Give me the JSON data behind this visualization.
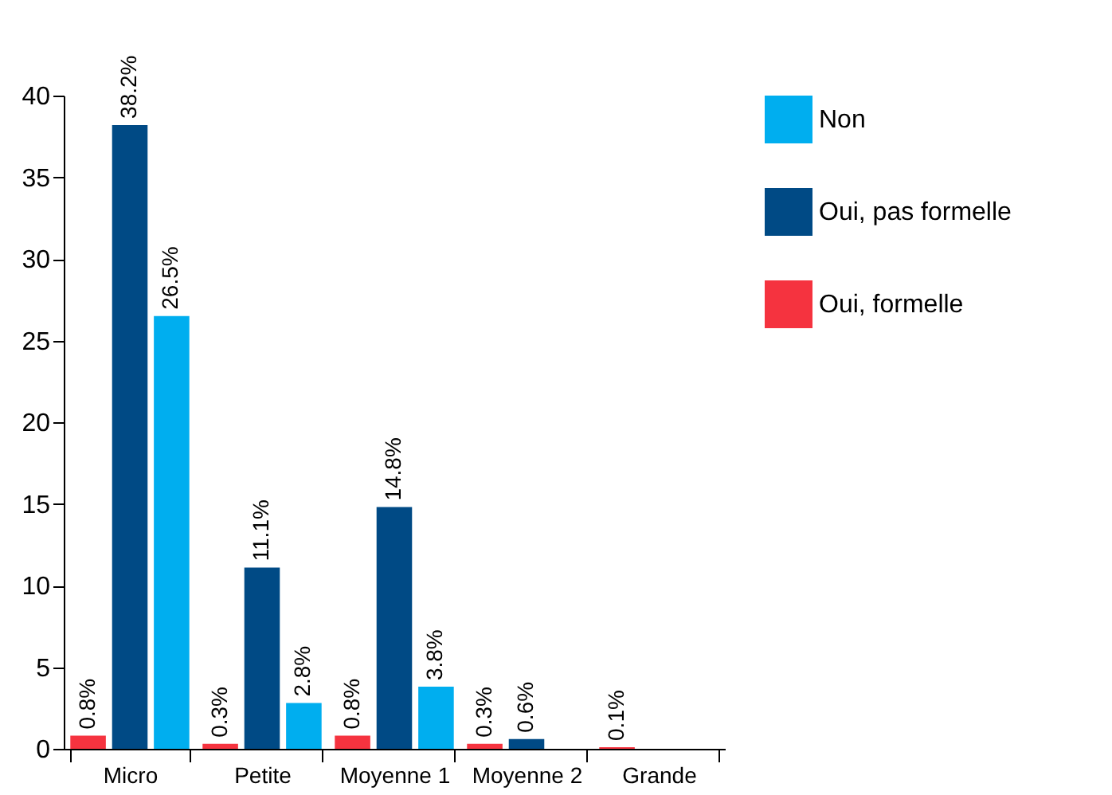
{
  "chart_data": {
    "type": "bar",
    "categories": [
      "Micro",
      "Petite",
      "Moyenne 1",
      "Moyenne 2",
      "Grande"
    ],
    "series": [
      {
        "name": "Non",
        "color": "#00aeef",
        "values": [
          26.5,
          2.8,
          3.8,
          null,
          null
        ],
        "value_labels": [
          "26.5%",
          "2.8%",
          "3.8%",
          null,
          null
        ]
      },
      {
        "name": "Oui, pas formelle",
        "color": "#004a85",
        "values": [
          38.2,
          11.1,
          14.8,
          0.6,
          null
        ],
        "value_labels": [
          "38.2%",
          "11.1%",
          "14.8%",
          "0.6%",
          null
        ]
      },
      {
        "name": "Oui, formelle",
        "color": "#f5333f",
        "values": [
          0.8,
          0.3,
          0.8,
          0.3,
          0.1
        ],
        "value_labels": [
          "0.8%",
          "0.3%",
          "0.8%",
          "0.3%",
          "0.1%"
        ]
      }
    ],
    "ylim": [
      0,
      40
    ],
    "yticks": [
      0,
      5,
      10,
      15,
      20,
      25,
      30,
      35,
      40
    ],
    "legend": "right",
    "grid": false
  }
}
